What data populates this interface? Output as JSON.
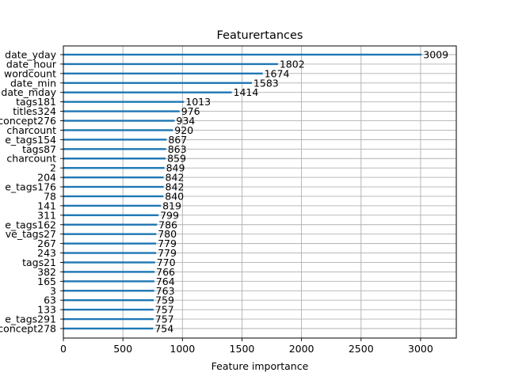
{
  "chart_data": {
    "type": "bar",
    "orientation": "horizontal",
    "title": "Featurertances",
    "xlabel": "Feature importance",
    "ylabel": "",
    "xlim": [
      0,
      3300
    ],
    "xticks": [
      0,
      500,
      1000,
      1500,
      2000,
      2500,
      3000
    ],
    "grid": true,
    "bar_color": "#1f77b4",
    "categories": [
      "date_yday",
      "date_hour",
      "wordcount",
      "date_min",
      "date_mday",
      "tags181",
      "titles324",
      "concept276",
      "charcount",
      "e_tags154",
      "tags87",
      "charcount",
      "2",
      "204",
      "e_tags176",
      "78",
      "141",
      "311",
      "e_tags162",
      "ve_tags27",
      "267",
      "243",
      "tags21",
      "382",
      "165",
      "3",
      "63",
      "133",
      "e_tags291",
      "concept278"
    ],
    "values": [
      3009,
      1802,
      1674,
      1583,
      1414,
      1013,
      976,
      934,
      920,
      867,
      863,
      859,
      849,
      842,
      842,
      840,
      819,
      799,
      786,
      780,
      779,
      779,
      770,
      766,
      764,
      763,
      759,
      757,
      757,
      754
    ]
  }
}
